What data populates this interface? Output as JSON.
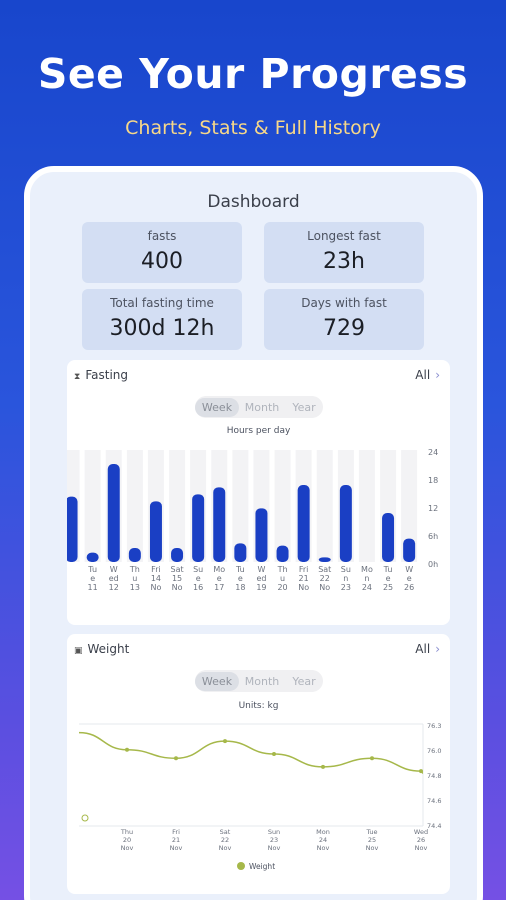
{
  "hero": {
    "title": "See Your Progress",
    "subtitle": "Charts, Stats & Full History"
  },
  "dashboard": {
    "title": "Dashboard",
    "stats": [
      {
        "label": "fasts",
        "value": "400"
      },
      {
        "label": "Longest fast",
        "value": "23h"
      },
      {
        "label": "Total fasting time",
        "value": "300d 12h"
      },
      {
        "label": "Days with fast",
        "value": "729"
      }
    ]
  },
  "fasting_panel": {
    "icon": "hourglass-icon",
    "title": "Fasting",
    "all_label": "All",
    "tabs": [
      "Week",
      "Month",
      "Year"
    ],
    "active_tab": "Week",
    "chart_title": "Hours per day"
  },
  "weight_panel": {
    "icon": "scale-icon",
    "title": "Weight",
    "all_label": "All",
    "tabs": [
      "Week",
      "Month",
      "Year"
    ],
    "active_tab": "Week",
    "chart_title": "Units: kg",
    "legend": "Weight"
  },
  "colors": {
    "bar": "#1a3fc4",
    "bar_bg": "#f3f3f5",
    "weight_line": "#a6b84a",
    "accent_sub": "#f7d889"
  },
  "chart_data": [
    {
      "type": "bar",
      "title": "Hours per day",
      "categories": [
        "",
        "Tu e 11",
        "We d 12",
        "Th u 13",
        "Fri 14 No",
        "Sat 15 No",
        "Su e 16",
        "Mo e 17",
        "Tu e 18",
        "W ed 19",
        "Th u 20",
        "Fri 21 No",
        "Sat 22 No",
        "Su n 23",
        "Mo n 24",
        "Tu e 25",
        "W e 26"
      ],
      "category_lines": [
        [
          "",
          "",
          ""
        ],
        [
          "Tu",
          "e",
          "11"
        ],
        [
          "W",
          "ed",
          "12"
        ],
        [
          "Th",
          "u",
          "13"
        ],
        [
          "Fri",
          "14",
          "No"
        ],
        [
          "Sat",
          "15",
          "No"
        ],
        [
          "Su",
          "e",
          "16"
        ],
        [
          "Mo",
          "e",
          "17"
        ],
        [
          "Tu",
          "e",
          "18"
        ],
        [
          "W",
          "ed",
          "19"
        ],
        [
          "Th",
          "u",
          "20"
        ],
        [
          "Fri",
          "21",
          "No"
        ],
        [
          "Sat",
          "22",
          "No"
        ],
        [
          "Su",
          "n",
          "23"
        ],
        [
          "Mo",
          "n",
          "24"
        ],
        [
          "Tu",
          "e",
          "25"
        ],
        [
          "W",
          "e",
          "26"
        ]
      ],
      "values": [
        14,
        2,
        21,
        3,
        13,
        3,
        14.5,
        16,
        4,
        11.5,
        3.5,
        16.5,
        1,
        16.5,
        0,
        10.5,
        5
      ],
      "yticks": [
        "24",
        "18",
        "12",
        "6h",
        "0h"
      ],
      "ylim": [
        0,
        24
      ]
    },
    {
      "type": "line",
      "title": "Units: kg",
      "categories": [
        [
          "Thu",
          "20",
          "Nov"
        ],
        [
          "Fri",
          "21",
          "Nov"
        ],
        [
          "Sat",
          "22",
          "Nov"
        ],
        [
          "Sun",
          "23",
          "Nov"
        ],
        [
          "Mon",
          "24",
          "Nov"
        ],
        [
          "Tue",
          "25",
          "Nov"
        ],
        [
          "Wed",
          "26",
          "Nov"
        ]
      ],
      "series": [
        {
          "name": "Weight",
          "values": [
            76.2,
            76.1,
            76.3,
            76.15,
            76.0,
            76.1,
            75.95
          ]
        }
      ],
      "leading_value": 76.4,
      "yticks": [
        "76.3",
        "76.0",
        "74.8",
        "74.6",
        "74.4"
      ],
      "legend": "bottom"
    }
  ]
}
